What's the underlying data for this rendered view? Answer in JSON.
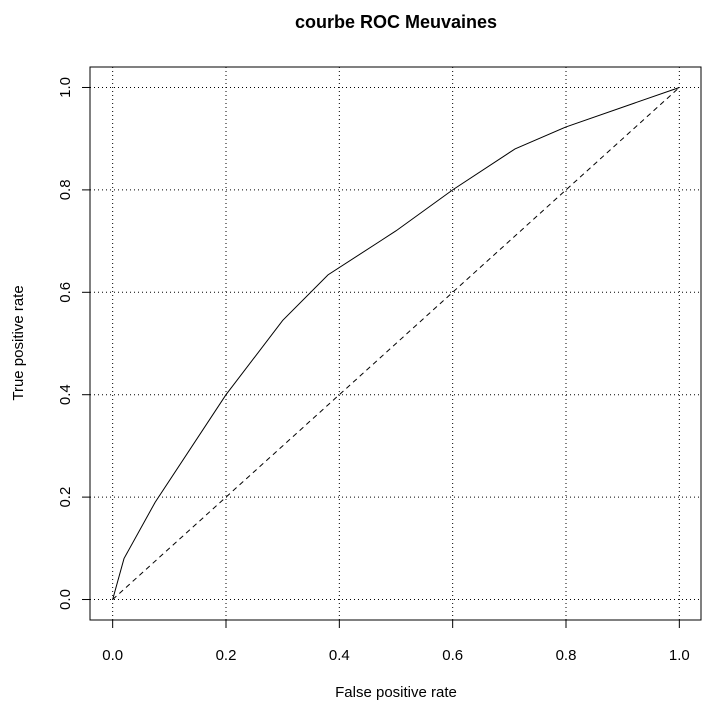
{
  "chart_data": {
    "type": "line",
    "title": "courbe ROC Meuvaines",
    "xlabel": "False positive rate",
    "ylabel": "True positive rate",
    "series": [
      {
        "color": "#000000",
        "dashed": false,
        "x": [
          0,
          0.02,
          0.075,
          0.2,
          0.3,
          0.38,
          0.5,
          0.6,
          0.71,
          0.8,
          1
        ],
        "values": [
          0,
          0.08,
          0.19,
          0.4,
          0.545,
          0.634,
          0.72,
          0.8,
          0.88,
          0.923,
          1
        ]
      },
      {
        "color": "#000000",
        "dashed": true,
        "x": [
          0,
          1
        ],
        "values": [
          0,
          1
        ]
      }
    ],
    "xlim": [
      -0.04,
      1.04
    ],
    "ylim": [
      -0.04,
      1.04
    ],
    "xticks": [
      {
        "value": 0,
        "label": "0.0"
      },
      0.2,
      0.4,
      0.6,
      0.8,
      {
        "value": 1,
        "label": "1.0"
      }
    ],
    "yticks": [
      {
        "value": 0,
        "label": "0.0"
      },
      0.2,
      0.4,
      0.6,
      0.8,
      {
        "value": 1,
        "label": "1.0"
      }
    ],
    "grid": true
  }
}
